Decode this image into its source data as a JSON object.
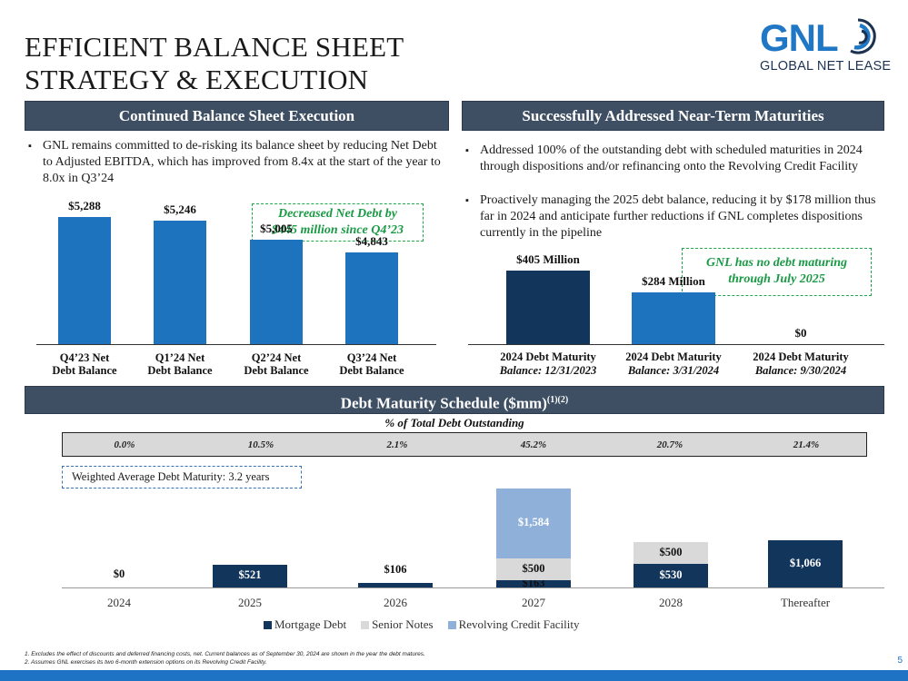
{
  "slide": {
    "title_line1": "EFFICIENT BALANCE SHEET",
    "title_line2": "STRATEGY & EXECUTION",
    "logo_text": "GNL",
    "logo_subtext": "GLOBAL NET LEASE",
    "page_number": "5",
    "brand_color": "#1f77c5",
    "header_color": "#3f4f63"
  },
  "left_panel": {
    "header": "Continued Balance Sheet Execution",
    "bullet": "GNL remains committed to de-risking its balance sheet by reducing Net Debt to Adjusted EBITDA, which has improved from 8.4x at the start of the year to 8.0x in Q3’24",
    "callout_line1": "Decreased Net Debt by",
    "callout_line2": "$445 million since Q4’23",
    "chart_data": {
      "type": "bar",
      "categories": [
        "Q4’23 Net Debt Balance",
        "Q1’24 Net Debt Balance",
        "Q2’24 Net Debt Balance",
        "Q3’24 Net Debt Balance"
      ],
      "category_lines": [
        [
          "Q4’23 Net",
          "Debt Balance"
        ],
        [
          "Q1’24 Net",
          "Debt Balance"
        ],
        [
          "Q2’24 Net",
          "Debt Balance"
        ],
        [
          "Q3’24 Net",
          "Debt Balance"
        ]
      ],
      "values": [
        5288,
        5246,
        5005,
        4843
      ],
      "labels": [
        "$5,288",
        "$5,246",
        "$5,005",
        "$4,843"
      ],
      "color": "#1e73be"
    }
  },
  "right_panel": {
    "header": "Successfully Addressed Near-Term Maturities",
    "bullet1": "Addressed 100% of the outstanding debt with scheduled maturities in 2024 through dispositions and/or refinancing onto the Revolving Credit Facility",
    "bullet2": "Proactively managing the 2025 debt balance, reducing it by $178 million thus far in 2024 and anticipate further reductions if GNL completes dispositions currently in the pipeline",
    "callout_line1": "GNL has no debt maturing",
    "callout_line2": "through July 2025",
    "chart_data": {
      "type": "bar",
      "categories": [
        "2024 Debt Maturity Balance: 12/31/2023",
        "2024 Debt Maturity Balance: 3/31/2024",
        "2024 Debt Maturity Balance: 9/30/2024"
      ],
      "category_line1": [
        "2024 Debt Maturity",
        "2024 Debt Maturity",
        "2024 Debt Maturity"
      ],
      "category_line2": [
        "Balance: 12/31/2023",
        "Balance: 3/31/2024",
        "Balance: 9/30/2024"
      ],
      "values": [
        405,
        284,
        0
      ],
      "labels": [
        "$405 Million",
        "$284 Million",
        "$0"
      ],
      "colors": [
        "#12355b",
        "#1e73be",
        "#1e73be"
      ]
    }
  },
  "maturity": {
    "header": "Debt Maturity Schedule ($mm)",
    "header_sup": "(1)(2)",
    "pct_title": "% of Total Debt Outstanding",
    "pct_values": [
      "0.0%",
      "10.5%",
      "2.1%",
      "45.2%",
      "20.7%",
      "21.4%"
    ],
    "wam_label": "Weighted Average Debt Maturity: 3.2 years",
    "chart_data": {
      "type": "bar",
      "stacked": true,
      "categories": [
        "2024",
        "2025",
        "2026",
        "2027",
        "2028",
        "Thereafter"
      ],
      "series": [
        {
          "name": "Mortgage Debt",
          "values": [
            0,
            521,
            106,
            163,
            530,
            1066
          ],
          "labels": [
            "$0",
            "$521",
            "$106",
            "$163",
            "$530",
            "$1,066"
          ],
          "color": "#12355b"
        },
        {
          "name": "Senior Notes",
          "values": [
            0,
            0,
            0,
            500,
            500,
            0
          ],
          "labels": [
            "",
            "",
            "",
            "$500",
            "$500",
            ""
          ],
          "color": "#d9d9d9"
        },
        {
          "name": "Revolving Credit Facility",
          "values": [
            0,
            0,
            0,
            1584,
            0,
            0
          ],
          "labels": [
            "",
            "",
            "",
            "$1,584",
            "",
            ""
          ],
          "color": "#8fb0d9"
        }
      ]
    }
  },
  "footnotes": {
    "fn1": "1.    Excludes the effect of discounts and deferred financing costs, net. Current balances as of September 30, 2024 are shown in the year the debt matures.",
    "fn2": "2.    Assumes GNL exercises its two 6-month extension options on its Revolving Credit Facility."
  }
}
